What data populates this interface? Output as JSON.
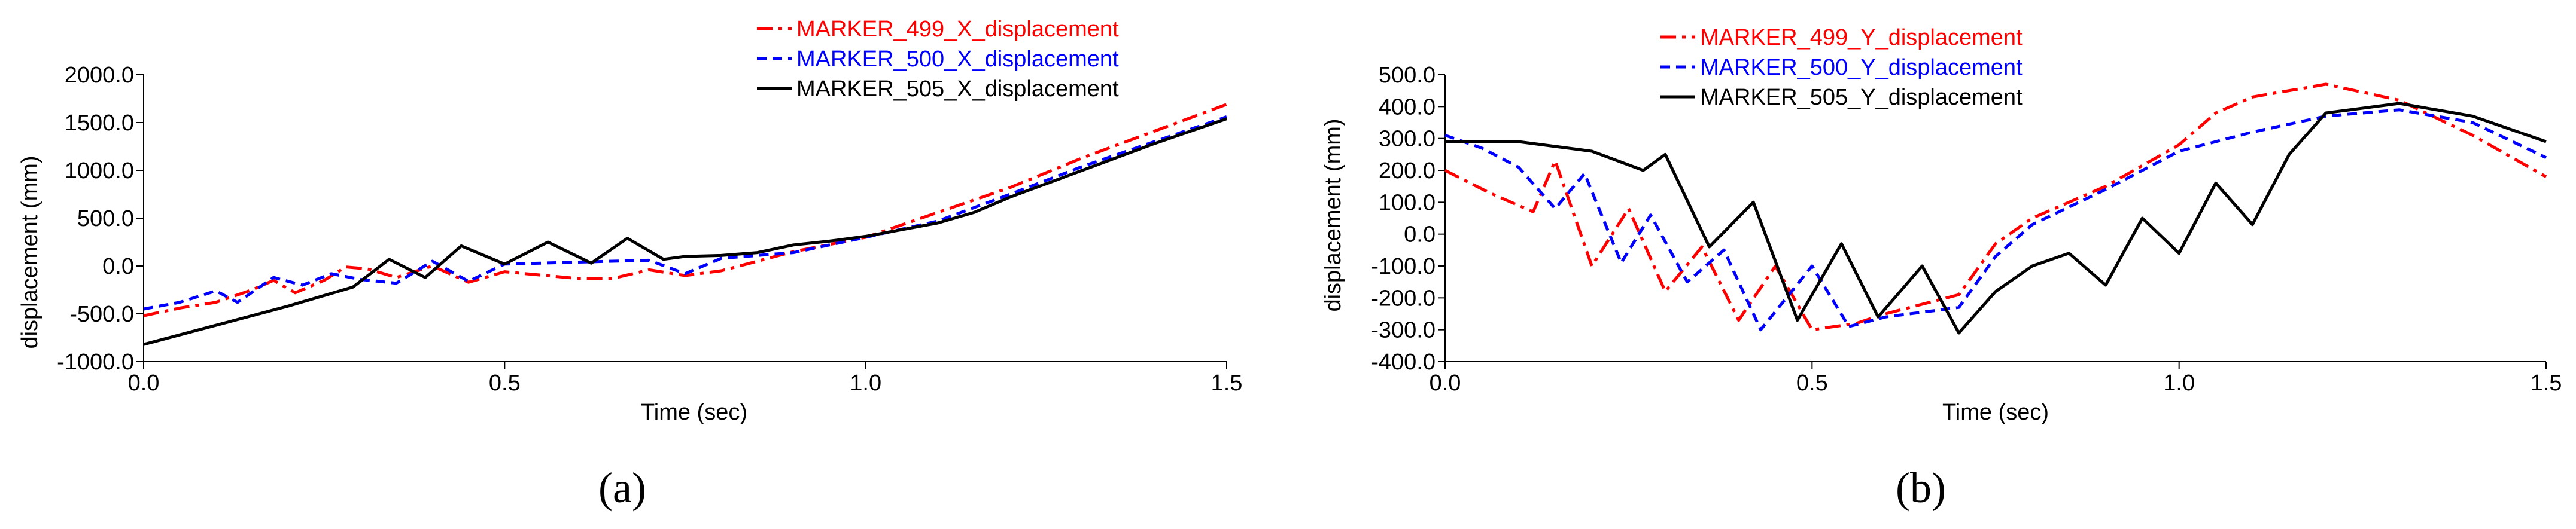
{
  "panels": [
    {
      "caption": "(a)",
      "chart_data": {
        "type": "line",
        "xlabel": "Time (sec)",
        "ylabel": "displacement (mm)",
        "xlim": [
          0.0,
          1.5
        ],
        "ylim": [
          -1000.0,
          2000.0
        ],
        "x_ticks": [
          "0.0",
          "0.5",
          "1.0",
          "1.5"
        ],
        "y_ticks": [
          "-1000.0",
          "-500.0",
          "0.0",
          "500.0",
          "1000.0",
          "1500.0",
          "2000.0"
        ],
        "grid": false,
        "legend_position": "top-right",
        "series": [
          {
            "name": "MARKER_499_X_displacement",
            "color": "#ff0000",
            "dash": "dash-dot",
            "x": [
              0.0,
              0.05,
              0.1,
              0.15,
              0.18,
              0.21,
              0.25,
              0.28,
              0.31,
              0.35,
              0.4,
              0.45,
              0.5,
              0.6,
              0.65,
              0.7,
              0.75,
              0.8,
              0.9,
              1.0,
              1.1,
              1.2,
              1.3,
              1.4,
              1.5
            ],
            "y": [
              -520,
              -440,
              -380,
              -250,
              -150,
              -280,
              -150,
              -10,
              -30,
              -120,
              0,
              -170,
              -60,
              -130,
              -130,
              -40,
              -100,
              -50,
              150,
              300,
              560,
              820,
              1130,
              1410,
              1690
            ]
          },
          {
            "name": "MARKER_500_X_displacement",
            "color": "#0000ff",
            "dash": "dash",
            "x": [
              0.0,
              0.05,
              0.1,
              0.13,
              0.18,
              0.22,
              0.26,
              0.3,
              0.35,
              0.4,
              0.45,
              0.5,
              0.6,
              0.7,
              0.75,
              0.8,
              0.9,
              1.0,
              1.1,
              1.2,
              1.3,
              1.4,
              1.5
            ],
            "y": [
              -450,
              -380,
              -260,
              -380,
              -120,
              -200,
              -80,
              -140,
              -180,
              50,
              -160,
              20,
              40,
              60,
              -80,
              80,
              140,
              300,
              470,
              750,
              1040,
              1300,
              1560
            ]
          },
          {
            "name": "MARKER_505_X_displacement",
            "color": "#000000",
            "dash": "solid",
            "x": [
              0.0,
              0.1,
              0.2,
              0.29,
              0.34,
              0.39,
              0.44,
              0.5,
              0.56,
              0.62,
              0.67,
              0.72,
              0.75,
              0.8,
              0.85,
              0.9,
              0.95,
              1.0,
              1.05,
              1.1,
              1.15,
              1.2,
              1.3,
              1.4,
              1.5
            ],
            "y": [
              -820,
              -620,
              -420,
              -220,
              70,
              -120,
              210,
              20,
              250,
              30,
              290,
              70,
              100,
              110,
              140,
              220,
              260,
              310,
              380,
              450,
              560,
              720,
              1000,
              1280,
              1540
            ]
          }
        ]
      }
    },
    {
      "caption": "(b)",
      "chart_data": {
        "type": "line",
        "xlabel": "Time (sec)",
        "ylabel": "displacement (mm)",
        "xlim": [
          0.0,
          1.5
        ],
        "ylim": [
          -400.0,
          500.0
        ],
        "x_ticks": [
          "0.0",
          "0.5",
          "1.0",
          "1.5"
        ],
        "y_ticks": [
          "-400.0",
          "-300.0",
          "-200.0",
          "-100.0",
          "0.0",
          "100.0",
          "200.0",
          "300.0",
          "400.0",
          "500.0"
        ],
        "grid": false,
        "legend_position": "top-center",
        "series": [
          {
            "name": "MARKER_499_Y_displacement",
            "color": "#ff0000",
            "dash": "dash-dot",
            "x": [
              0.0,
              0.06,
              0.12,
              0.15,
              0.2,
              0.25,
              0.3,
              0.35,
              0.4,
              0.45,
              0.5,
              0.56,
              0.6,
              0.7,
              0.75,
              0.8,
              0.9,
              1.0,
              1.05,
              1.1,
              1.2,
              1.3,
              1.4,
              1.5
            ],
            "y": [
              200,
              130,
              70,
              230,
              -100,
              80,
              -180,
              -40,
              -270,
              -100,
              -300,
              -280,
              -250,
              -190,
              -30,
              50,
              150,
              280,
              380,
              430,
              470,
              420,
              310,
              180
            ]
          },
          {
            "name": "MARKER_500_Y_displacement",
            "color": "#0000ff",
            "dash": "dash",
            "x": [
              0.0,
              0.05,
              0.1,
              0.15,
              0.19,
              0.24,
              0.28,
              0.33,
              0.38,
              0.43,
              0.5,
              0.55,
              0.6,
              0.7,
              0.75,
              0.8,
              0.9,
              1.0,
              1.1,
              1.2,
              1.3,
              1.4,
              1.5
            ],
            "y": [
              310,
              270,
              210,
              80,
              190,
              -90,
              60,
              -150,
              -50,
              -300,
              -100,
              -290,
              -260,
              -230,
              -70,
              30,
              140,
              260,
              320,
              370,
              390,
              350,
              240
            ]
          },
          {
            "name": "MARKER_505_Y_displacement",
            "color": "#000000",
            "dash": "solid",
            "x": [
              0.0,
              0.1,
              0.2,
              0.27,
              0.3,
              0.36,
              0.42,
              0.48,
              0.54,
              0.59,
              0.65,
              0.7,
              0.75,
              0.8,
              0.85,
              0.9,
              0.95,
              1.0,
              1.05,
              1.1,
              1.15,
              1.2,
              1.3,
              1.4,
              1.5
            ],
            "y": [
              290,
              290,
              260,
              200,
              250,
              -40,
              100,
              -270,
              -30,
              -260,
              -100,
              -310,
              -180,
              -100,
              -60,
              -160,
              50,
              -60,
              160,
              30,
              250,
              380,
              410,
              370,
              290
            ]
          }
        ]
      }
    }
  ]
}
